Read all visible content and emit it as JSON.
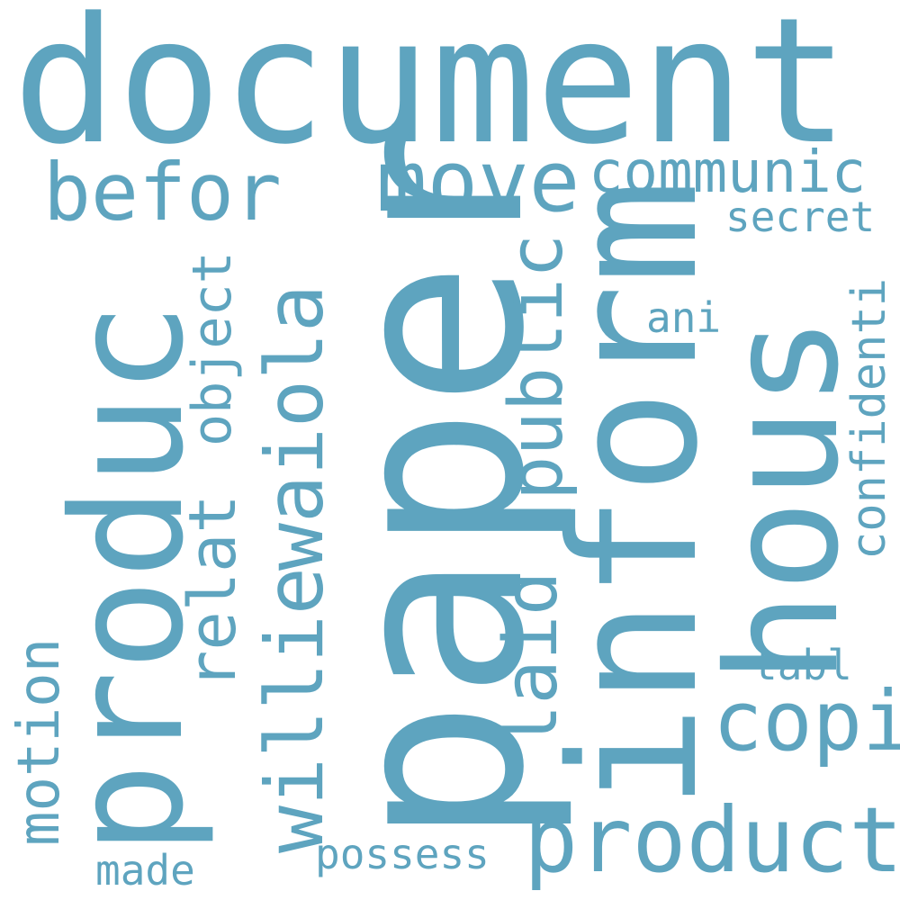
{
  "colors": {
    "background": "#ffffff",
    "word": "#5ea4bf"
  },
  "words": {
    "document": "document",
    "paper": "paper",
    "produc": "produc",
    "inform": "inform",
    "hous": "hous",
    "product": "product",
    "befor": "befor",
    "move": "move",
    "communic": "communic",
    "secret": "secret",
    "willie": "willie",
    "waiola": "waiola",
    "relat": "relat",
    "object": "object",
    "public": "public",
    "laid": "laid",
    "copi": "copi",
    "ani": "ani",
    "confidenti": "confidenti",
    "tabl": "tabl",
    "motion": "motion",
    "made": "made",
    "possess": "possess"
  }
}
